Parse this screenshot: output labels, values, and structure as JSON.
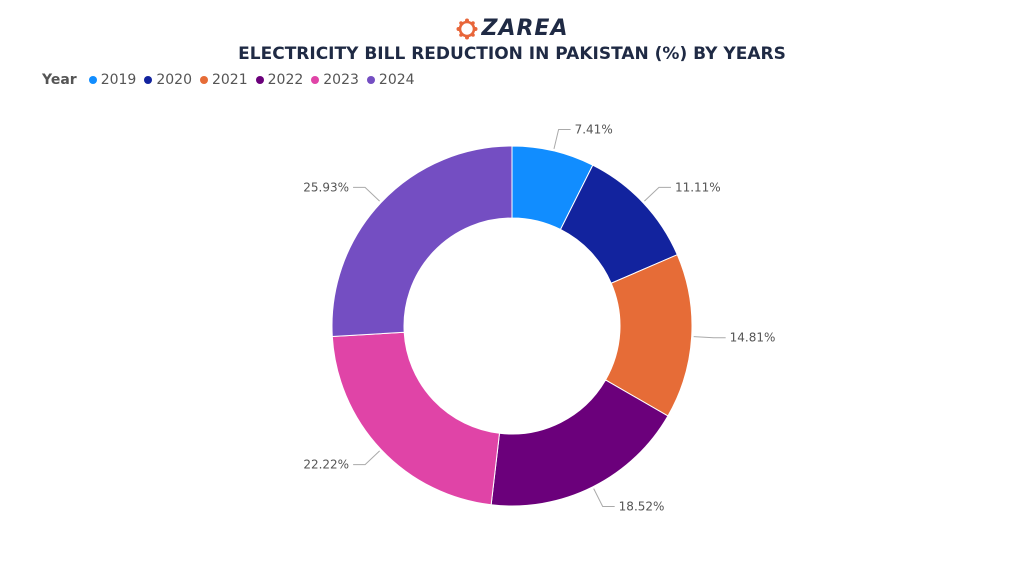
{
  "brand": {
    "name": "ZAREA",
    "logo_icon": "gear-flower-icon",
    "logo_color": "#e8663a"
  },
  "chart_data": {
    "type": "pie",
    "variant": "donut",
    "title": "ELECTRICITY BILL REDUCTION IN PAKISTAN (%) BY YEARS",
    "legend_title": "Year",
    "legend_position": "top-left",
    "categories": [
      "2019",
      "2020",
      "2021",
      "2022",
      "2023",
      "2024"
    ],
    "values": [
      7.41,
      11.11,
      14.81,
      18.52,
      22.22,
      25.93
    ],
    "labels": [
      "7.41%",
      "11.11%",
      "14.81%",
      "18.52%",
      "22.22%",
      "25.93%"
    ],
    "colors": [
      "#118dff",
      "#12239e",
      "#e66c37",
      "#6b007b",
      "#e044a7",
      "#744ec2"
    ]
  }
}
